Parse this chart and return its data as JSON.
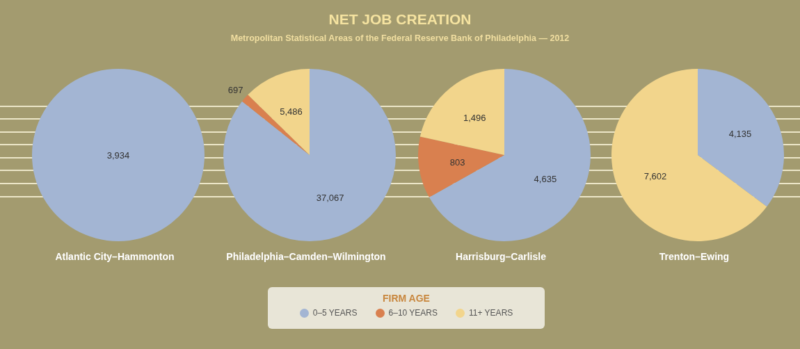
{
  "chart_data": [
    {
      "type": "pie",
      "title": "NET JOB CREATION",
      "subtitle": "Metropolitan Statistical Areas of the Federal Reserve Bank of Philadelphia — 2012",
      "xlabel": "Atlantic City–Hammonton",
      "categories": [
        null
      ],
      "values": [
        3934
      ],
      "value_labels": [
        "3,934"
      ],
      "colors": [
        "#a3b5d3"
      ]
    },
    {
      "type": "pie",
      "xlabel": "Philadelphia–Camden–Wilmington",
      "categories": [
        "0–5 YEARS",
        "6–10 YEARS",
        "11+ YEARS"
      ],
      "values": [
        37067,
        697,
        5486
      ],
      "value_labels": [
        "37,067",
        "697",
        "5,486"
      ],
      "colors": [
        "#a3b5d3",
        "#d9804f",
        "#f2d58c"
      ],
      "legend": "bottom",
      "legend_title": "FIRM AGE"
    },
    {
      "type": "pie",
      "xlabel": "Harrisburg–Carlisle",
      "categories": [
        null,
        null,
        null
      ],
      "values": [
        4635,
        803,
        1496
      ],
      "value_labels": [
        "4,635",
        "803",
        "1,496"
      ],
      "colors": [
        "#a3b5d3",
        "#d9804f",
        "#f2d58c"
      ]
    },
    {
      "type": "pie",
      "xlabel": "Trenton–Ewing",
      "categories": [
        null,
        null
      ],
      "values": [
        4135,
        7602
      ],
      "value_labels": [
        "4,135",
        "7,602"
      ],
      "colors": [
        "#a3b5d3",
        "#f2d58c"
      ]
    }
  ]
}
